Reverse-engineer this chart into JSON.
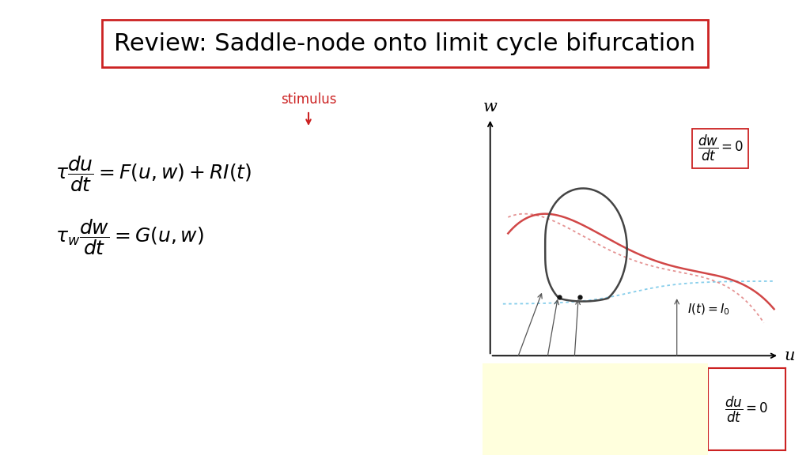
{
  "title": "Review: Saddle-node onto limit cycle bifurcation",
  "title_fontsize": 22,
  "bg_color": "#ffffff",
  "title_box_color": "#cc2222",
  "stimulus_color": "#cc2222",
  "nullcline_dw_color": "#87CEEB",
  "nullcline_du_orig_color": "#e08080",
  "nullcline_du_shift_color": "#cc3333",
  "limit_cycle_color": "#444444",
  "arrow_color": "#555555",
  "yellow_box_color": "#ffffdd",
  "dot_color": "#111111",
  "w_label": "w",
  "u_label": "u",
  "It_label": "I(t)=I$_0$",
  "stimulus_label": "stimulus"
}
